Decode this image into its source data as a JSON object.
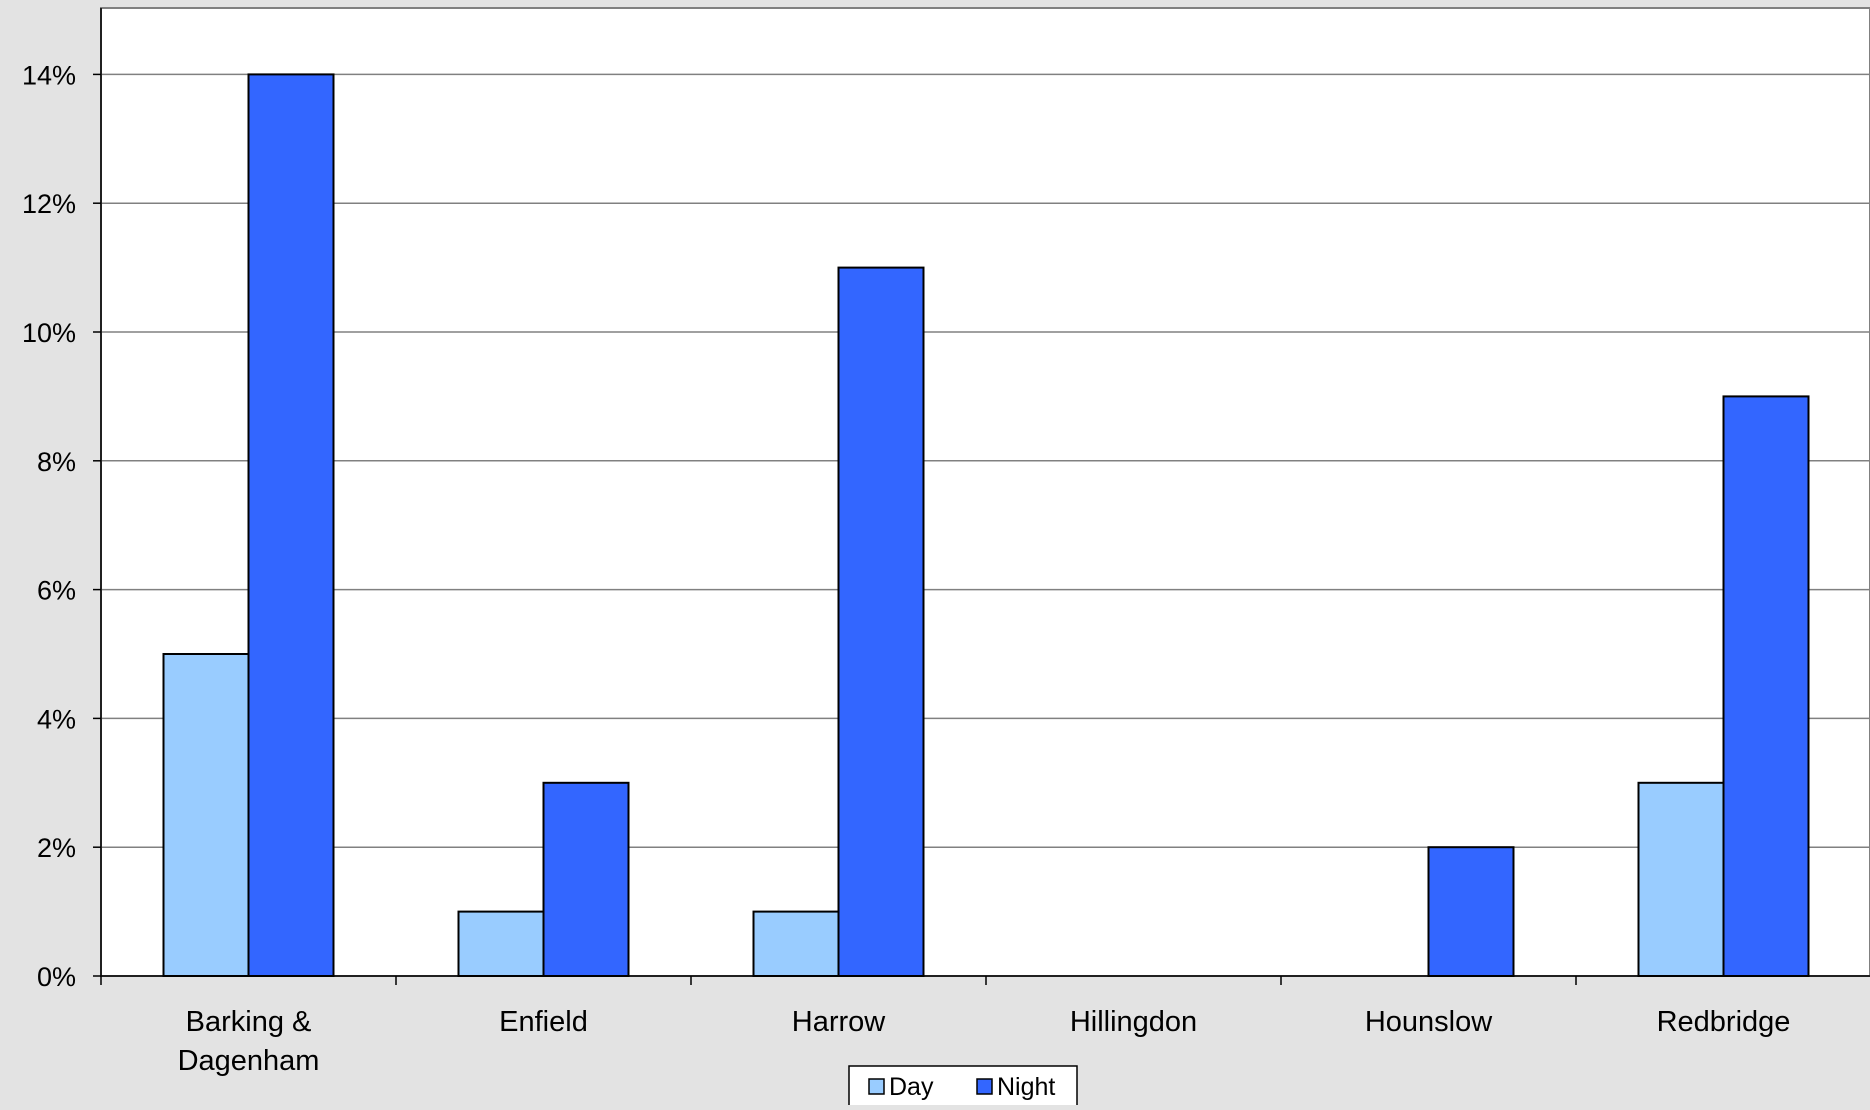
{
  "chart_data": {
    "type": "bar",
    "categories": [
      [
        "Barking &",
        "Dagenham"
      ],
      [
        "Enfield"
      ],
      [
        "Harrow"
      ],
      [
        "Hillingdon"
      ],
      [
        "Hounslow"
      ],
      [
        "Redbridge"
      ]
    ],
    "series": [
      {
        "name": "Day",
        "values": [
          5,
          1,
          1,
          0,
          0,
          3
        ],
        "color": "#99ccff"
      },
      {
        "name": "Night",
        "values": [
          14,
          3,
          11,
          0,
          2,
          9
        ],
        "color": "#3366ff"
      }
    ],
    "ylim": [
      0,
      15
    ],
    "yticks": [
      0,
      2,
      4,
      6,
      8,
      10,
      12,
      14
    ],
    "ytick_labels": [
      "0%",
      "2%",
      "4%",
      "6%",
      "8%",
      "10%",
      "12%",
      "14%"
    ],
    "grid": true,
    "legend_position": "bottom",
    "plot_background": "#ffffff",
    "chart_background": "#e3e3e3",
    "gridline_color": "#808080"
  }
}
